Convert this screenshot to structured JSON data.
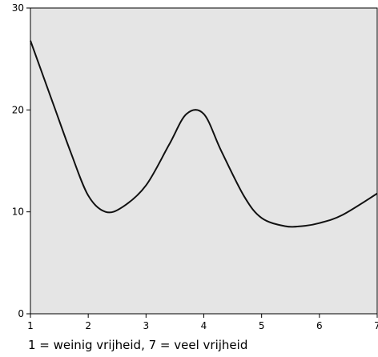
{
  "chart_data": {
    "type": "line",
    "title": "",
    "xlabel": "1 = weinig vrijheid,  7 = veel vrijheid",
    "ylabel": "",
    "xlim": [
      1,
      7
    ],
    "ylim": [
      0,
      30
    ],
    "x_ticks": [
      "1",
      "2",
      "3",
      "4",
      "5",
      "6",
      "7"
    ],
    "y_ticks": [
      "0",
      "10",
      "20",
      "30"
    ],
    "grid": false,
    "background": "#e5e5e5",
    "line_color": "#111111",
    "series": [
      {
        "x": [
          1.0,
          1.4,
          1.7,
          2.0,
          2.3,
          2.6,
          3.0,
          3.4,
          3.7,
          4.0,
          4.3,
          4.7,
          5.0,
          5.4,
          5.7,
          6.0,
          6.4,
          7.0
        ],
        "values": [
          26.8,
          20.5,
          15.8,
          11.6,
          10.0,
          10.5,
          12.6,
          16.6,
          19.6,
          19.6,
          16.0,
          11.5,
          9.4,
          8.6,
          8.6,
          8.9,
          9.7,
          11.8
        ]
      }
    ]
  }
}
